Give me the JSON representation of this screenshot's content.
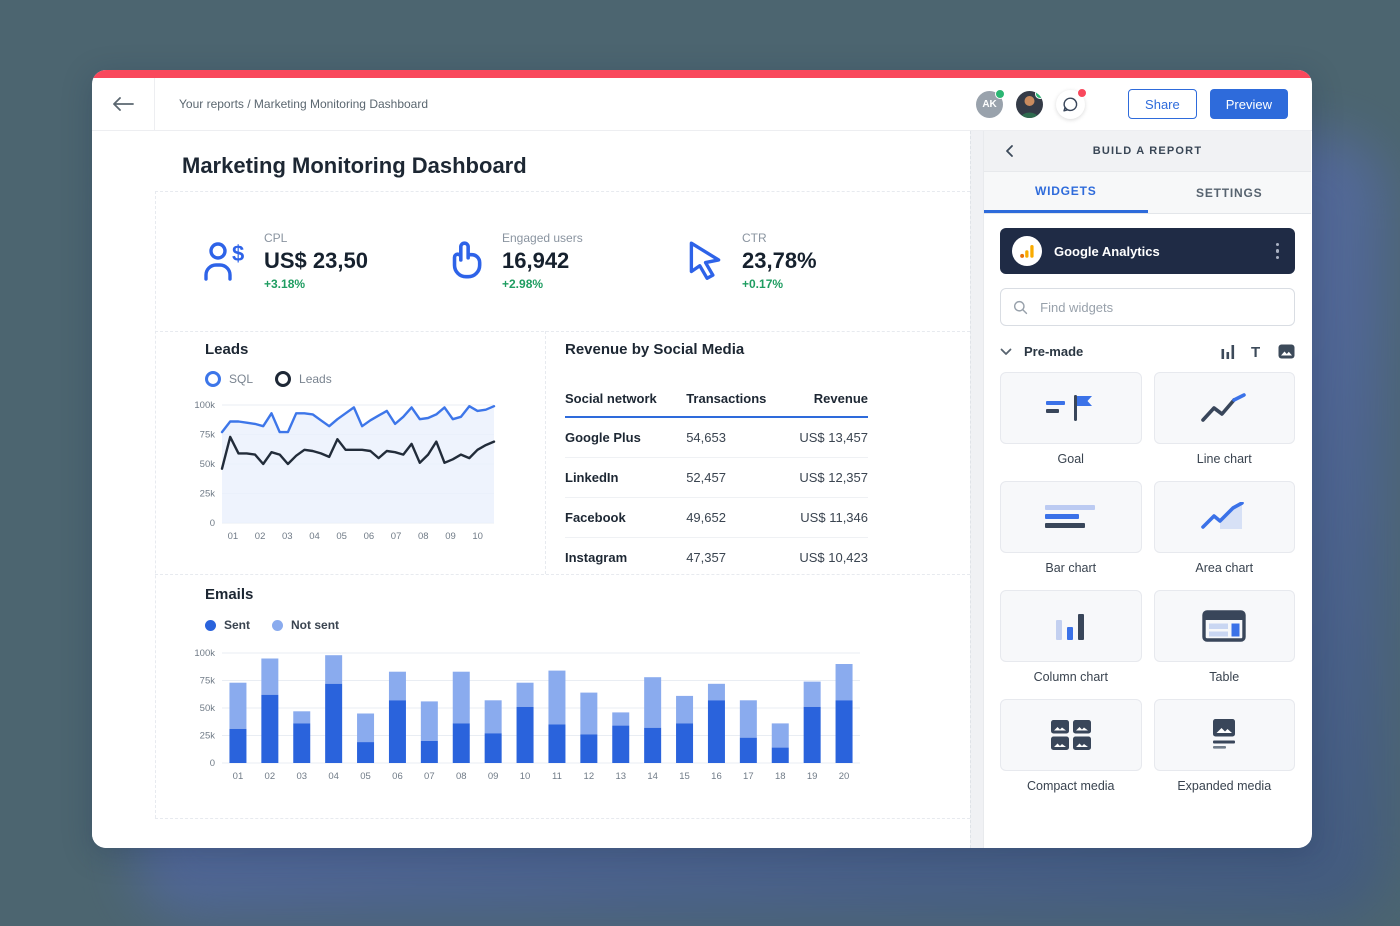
{
  "page": {
    "background_color": "#4C6570",
    "shadow_color": "#51679A",
    "accent_color": "#2E6BDB",
    "topstrip_color": "#F9485C"
  },
  "topbar": {
    "breadcrumb": "Your reports / Marketing Monitoring Dashboard",
    "avatar_initials": "AK",
    "avatar_status_color": "#2BB673",
    "chat_badge_color": "#F9485C",
    "share_label": "Share",
    "preview_label": "Preview"
  },
  "report": {
    "title": "Marketing Monitoring Dashboard",
    "kpis": [
      {
        "icon": "person-dollar-icon",
        "label": "CPL",
        "value": "US$ 23,50",
        "delta": "+3.18%"
      },
      {
        "icon": "pointer-hand-icon",
        "label": "Engaged users",
        "value": "16,942",
        "delta": "+2.98%"
      },
      {
        "icon": "cursor-arrow-icon",
        "label": "CTR",
        "value": "23,78%",
        "delta": "+0.17%"
      }
    ]
  },
  "chart_data": [
    {
      "type": "line",
      "title": "Leads",
      "x_labels": [
        "01",
        "02",
        "03",
        "04",
        "05",
        "06",
        "07",
        "08",
        "09",
        "10"
      ],
      "ylim": [
        0,
        100000
      ],
      "ytick_labels": [
        "100k",
        "75k",
        "50k",
        "25k",
        "0"
      ],
      "ytick_values": [
        100,
        75,
        50,
        25,
        0
      ],
      "grid": true,
      "legend_position": "top",
      "series": [
        {
          "name": "SQL",
          "color": "#3D76E9",
          "area_fill": "#EAF0FC",
          "values": [
            77,
            86,
            86,
            85,
            84,
            82,
            93,
            77,
            77,
            93,
            93,
            92,
            87,
            82,
            88,
            93,
            98,
            82,
            87,
            91,
            95,
            84,
            90,
            98,
            88,
            89,
            92,
            98,
            88,
            90,
            99,
            95,
            96,
            99
          ]
        },
        {
          "name": "Leads",
          "color": "#222C3A",
          "values": [
            46,
            73,
            59,
            59,
            58,
            50,
            60,
            58,
            50,
            57,
            62,
            61,
            59,
            56,
            71,
            62,
            62,
            62,
            61,
            55,
            61,
            60,
            58,
            67,
            51,
            58,
            69,
            51,
            54,
            58,
            55,
            62,
            66,
            69
          ]
        }
      ],
      "unit": "k (thousands)"
    },
    {
      "type": "table",
      "title": "Revenue by Social Media",
      "columns": [
        "Social network",
        "Transactions",
        "Revenue"
      ],
      "rows": [
        [
          "Google Plus",
          "54,653",
          "US$ 13,457"
        ],
        [
          "LinkedIn",
          "52,457",
          "US$ 12,357"
        ],
        [
          "Facebook",
          "49,652",
          "US$ 11,346"
        ],
        [
          "Instagram",
          "47,357",
          "US$ 10,423"
        ]
      ]
    },
    {
      "type": "bar",
      "stacked": true,
      "title": "Emails",
      "categories": [
        "01",
        "02",
        "03",
        "04",
        "05",
        "06",
        "07",
        "08",
        "09",
        "10",
        "11",
        "12",
        "13",
        "14",
        "15",
        "16",
        "17",
        "18",
        "19",
        "20"
      ],
      "ylim": [
        0,
        100000
      ],
      "ytick_labels": [
        "100k",
        "75k",
        "50k",
        "25k",
        "0"
      ],
      "ytick_values": [
        100,
        75,
        50,
        25,
        0
      ],
      "grid": true,
      "legend_position": "top",
      "series": [
        {
          "name": "Sent",
          "color": "#2A63DC",
          "values": [
            31,
            62,
            36,
            72,
            19,
            57,
            20,
            36,
            27,
            51,
            35,
            26,
            34,
            32,
            36,
            57,
            23,
            14,
            51,
            57
          ]
        },
        {
          "name": "Not sent",
          "color": "#8AABEE",
          "values": [
            42,
            33,
            11,
            26,
            26,
            26,
            36,
            47,
            30,
            22,
            49,
            38,
            12,
            46,
            25,
            15,
            34,
            22,
            23,
            33
          ]
        }
      ],
      "unit": "k (thousands)"
    }
  ],
  "panel": {
    "header_title": "BUILD A REPORT",
    "tabs": [
      {
        "label": "WIDGETS",
        "active": true
      },
      {
        "label": "SETTINGS",
        "active": false
      }
    ],
    "source": {
      "name": "Google Analytics",
      "icon": "google-analytics-icon",
      "menu_icon": "kebab-menu-icon"
    },
    "search": {
      "placeholder": "Find widgets",
      "icon": "search-icon"
    },
    "group_label": "Pre-made",
    "group_icons": [
      "column-chart-filter-icon",
      "text-filter-icon",
      "image-filter-icon"
    ],
    "widgets": [
      {
        "label": "Goal",
        "icon": "goal-icon"
      },
      {
        "label": "Line chart",
        "icon": "line-chart-icon"
      },
      {
        "label": "Bar chart",
        "icon": "bar-chart-icon"
      },
      {
        "label": "Area chart",
        "icon": "area-chart-icon"
      },
      {
        "label": "Column chart",
        "icon": "column-chart-icon"
      },
      {
        "label": "Table",
        "icon": "table-icon"
      },
      {
        "label": "Compact media",
        "icon": "compact-media-icon"
      },
      {
        "label": "Expanded media",
        "icon": "expanded-media-icon"
      }
    ]
  }
}
